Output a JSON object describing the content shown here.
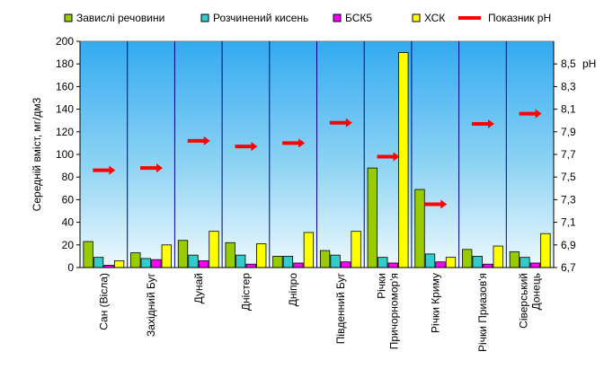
{
  "chart_data": {
    "type": "bar",
    "ylabel": "Середній вміст, мг/дм3",
    "y2label": "pH",
    "ylim": [
      0,
      200
    ],
    "yticks": [
      0,
      20,
      40,
      60,
      80,
      100,
      120,
      140,
      160,
      180,
      200
    ],
    "y2lim": [
      6.7,
      8.7
    ],
    "y2ticks": [
      "6,7",
      "6,9",
      "7,1",
      "7,3",
      "7,5",
      "7,7",
      "7,9",
      "8,1",
      "8,3",
      "8,5"
    ],
    "y2tick_values": [
      6.7,
      6.9,
      7.1,
      7.3,
      7.5,
      7.7,
      7.9,
      8.1,
      8.3,
      8.5
    ],
    "grid": "vertical category separators",
    "legend_position": "top",
    "categories": [
      "Сан (Вісла)",
      "Західний Буг",
      "Дунай",
      "Дністер",
      "Дніпро",
      "Південний Буг",
      "Річки Причорномор'я",
      "Річки Криму",
      "Річки Приазов'я",
      "Сіверський Донець"
    ],
    "category_labels": [
      [
        "Сан (Вісла)"
      ],
      [
        "Західний Буг"
      ],
      [
        "Дунай"
      ],
      [
        "Дністер"
      ],
      [
        "Дніпро"
      ],
      [
        "Південний Буг"
      ],
      [
        "Річки",
        "Причорномор'я"
      ],
      [
        "Річки Криму"
      ],
      [
        "Річки Приазов'я"
      ],
      [
        "Сіверський",
        "Донець"
      ]
    ],
    "series": [
      {
        "name": "Завислі  речовини",
        "color": "#99cc00",
        "values": [
          23,
          13,
          24,
          22,
          10,
          15,
          88,
          69,
          16,
          14
        ]
      },
      {
        "name": "Розчинений кисень",
        "color": "#33cccc",
        "values": [
          9,
          8,
          11,
          11,
          10,
          11,
          9,
          12,
          10,
          9
        ]
      },
      {
        "name": "БСК5",
        "color": "#ff00ff",
        "values": [
          2,
          7,
          6,
          3,
          4,
          5,
          4,
          5,
          3,
          4
        ]
      },
      {
        "name": "ХСК",
        "color": "#ffff00",
        "values": [
          6,
          20,
          32,
          21,
          31,
          32,
          190,
          9,
          19,
          30
        ]
      }
    ],
    "line_series": {
      "name": "Показник  pH",
      "color": "#ff0000",
      "axis": "secondary",
      "values": [
        7.56,
        7.58,
        7.82,
        7.77,
        7.8,
        7.98,
        7.68,
        7.26,
        7.97,
        8.06
      ]
    }
  }
}
